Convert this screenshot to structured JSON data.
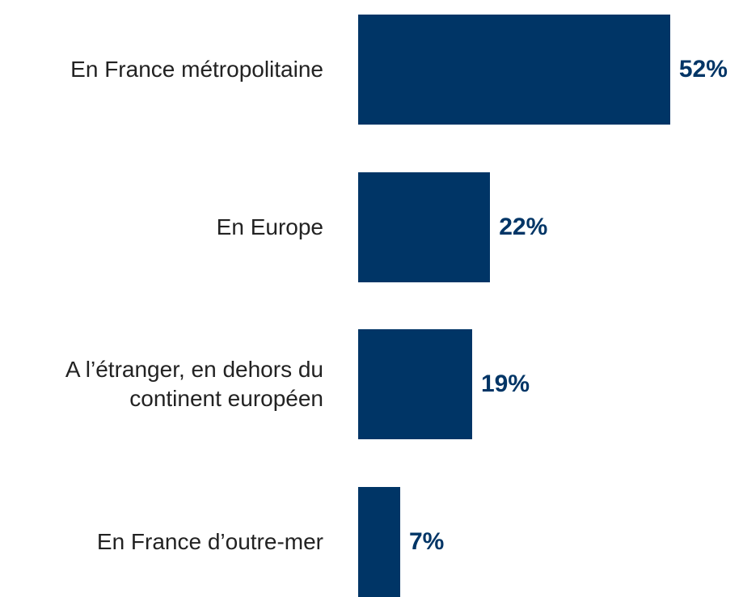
{
  "chart_data": {
    "type": "bar",
    "orientation": "horizontal",
    "categories": [
      "En France métropolitaine",
      "En Europe",
      "A l’étranger, en dehors du continent européen",
      "En France d’outre-mer"
    ],
    "values": [
      52,
      22,
      19,
      7
    ],
    "value_labels": [
      "52%",
      "22%",
      "19%",
      "7%"
    ],
    "color": "#003566"
  }
}
